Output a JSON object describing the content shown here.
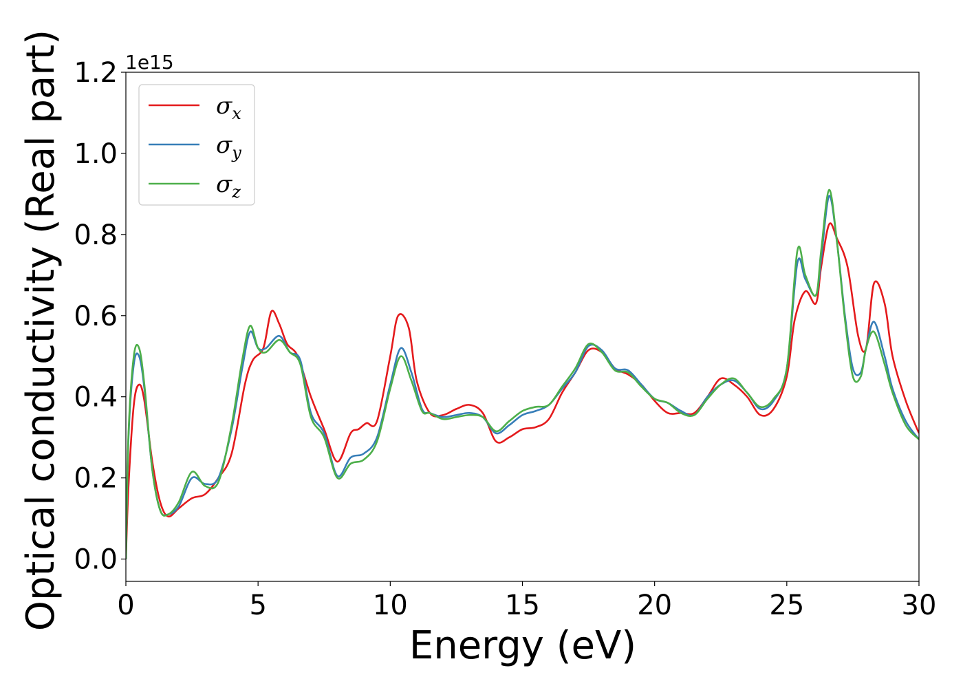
{
  "chart_data": {
    "type": "line",
    "xlabel": "Energy (eV)",
    "ylabel": "Optical conductivity (Real part)",
    "y_offset_label": "1e15",
    "xlim": [
      0,
      30
    ],
    "ylim": [
      -0.055,
      1.2
    ],
    "xticks": [
      0,
      5,
      10,
      15,
      20,
      25,
      30
    ],
    "xtick_labels": [
      "0",
      "5",
      "10",
      "15",
      "20",
      "25",
      "30"
    ],
    "yticks": [
      0.0,
      0.2,
      0.4,
      0.6,
      0.8,
      1.0,
      1.2
    ],
    "ytick_labels": [
      "0.0",
      "0.2",
      "0.4",
      "0.6",
      "0.8",
      "1.0",
      "1.2"
    ],
    "grid": false,
    "legend_position": "top-left",
    "series": [
      {
        "name": "σx",
        "symbol": "σ",
        "subscript": "x",
        "color": "#e41a1c",
        "x": [
          0,
          0.1,
          0.3,
          0.5,
          0.7,
          1.0,
          1.3,
          1.6,
          2.0,
          2.5,
          3.0,
          3.5,
          4.0,
          4.5,
          4.8,
          5.2,
          5.5,
          5.8,
          6.1,
          6.5,
          7.0,
          7.5,
          8.0,
          8.5,
          8.8,
          9.1,
          9.5,
          10.0,
          10.3,
          10.7,
          11.0,
          11.5,
          12.0,
          12.5,
          13.0,
          13.5,
          14.0,
          14.5,
          15.0,
          15.5,
          16.0,
          16.5,
          17.0,
          17.5,
          18.0,
          18.5,
          19.0,
          19.5,
          20.0,
          20.5,
          21.0,
          21.5,
          22.0,
          22.5,
          23.0,
          23.5,
          24.0,
          24.5,
          25.0,
          25.3,
          25.7,
          26.1,
          26.3,
          26.6,
          26.9,
          27.3,
          27.7,
          28.0,
          28.3,
          28.7,
          29.0,
          29.5,
          30.0
        ],
        "y": [
          0.0,
          0.18,
          0.38,
          0.43,
          0.39,
          0.24,
          0.14,
          0.105,
          0.125,
          0.15,
          0.16,
          0.2,
          0.26,
          0.43,
          0.49,
          0.52,
          0.61,
          0.58,
          0.53,
          0.5,
          0.4,
          0.32,
          0.24,
          0.31,
          0.32,
          0.335,
          0.34,
          0.5,
          0.6,
          0.57,
          0.44,
          0.36,
          0.355,
          0.37,
          0.38,
          0.36,
          0.29,
          0.3,
          0.32,
          0.325,
          0.345,
          0.41,
          0.46,
          0.515,
          0.51,
          0.47,
          0.455,
          0.43,
          0.39,
          0.36,
          0.36,
          0.36,
          0.4,
          0.445,
          0.43,
          0.4,
          0.355,
          0.37,
          0.45,
          0.59,
          0.66,
          0.63,
          0.72,
          0.825,
          0.79,
          0.72,
          0.55,
          0.52,
          0.68,
          0.63,
          0.5,
          0.39,
          0.31
        ]
      },
      {
        "name": "σy",
        "symbol": "σ",
        "subscript": "y",
        "color": "#377eb8",
        "x": [
          0,
          0.1,
          0.3,
          0.5,
          0.7,
          1.0,
          1.3,
          1.6,
          2.0,
          2.5,
          3.0,
          3.5,
          4.0,
          4.4,
          4.7,
          5.0,
          5.3,
          5.8,
          6.2,
          6.6,
          7.0,
          7.5,
          8.0,
          8.5,
          9.0,
          9.5,
          10.0,
          10.4,
          10.8,
          11.2,
          11.5,
          12.0,
          12.5,
          13.0,
          13.5,
          14.0,
          14.5,
          15.0,
          15.5,
          16.0,
          16.5,
          17.0,
          17.5,
          18.0,
          18.5,
          19.0,
          19.5,
          20.0,
          20.5,
          21.0,
          21.5,
          22.0,
          22.5,
          23.0,
          23.5,
          24.0,
          24.5,
          25.0,
          25.4,
          25.7,
          26.1,
          26.3,
          26.6,
          26.9,
          27.2,
          27.5,
          27.8,
          28.0,
          28.3,
          28.7,
          29.0,
          29.5,
          30.0
        ],
        "y": [
          0.0,
          0.3,
          0.48,
          0.5,
          0.42,
          0.22,
          0.12,
          0.11,
          0.13,
          0.2,
          0.185,
          0.2,
          0.32,
          0.47,
          0.56,
          0.52,
          0.52,
          0.55,
          0.51,
          0.49,
          0.36,
          0.31,
          0.205,
          0.25,
          0.26,
          0.3,
          0.43,
          0.52,
          0.46,
          0.37,
          0.36,
          0.35,
          0.355,
          0.36,
          0.35,
          0.31,
          0.33,
          0.355,
          0.365,
          0.38,
          0.42,
          0.46,
          0.525,
          0.515,
          0.47,
          0.465,
          0.43,
          0.395,
          0.385,
          0.365,
          0.355,
          0.4,
          0.43,
          0.44,
          0.41,
          0.37,
          0.39,
          0.47,
          0.73,
          0.69,
          0.65,
          0.74,
          0.895,
          0.78,
          0.6,
          0.47,
          0.46,
          0.52,
          0.585,
          0.5,
          0.42,
          0.34,
          0.295
        ]
      },
      {
        "name": "σz",
        "symbol": "σ",
        "subscript": "z",
        "color": "#4daf4a",
        "x": [
          0,
          0.1,
          0.3,
          0.5,
          0.7,
          1.0,
          1.3,
          1.6,
          2.0,
          2.5,
          3.0,
          3.5,
          4.0,
          4.4,
          4.7,
          5.0,
          5.3,
          5.8,
          6.2,
          6.6,
          7.0,
          7.5,
          8.0,
          8.5,
          9.0,
          9.5,
          10.0,
          10.4,
          10.8,
          11.2,
          11.5,
          12.0,
          12.5,
          13.0,
          13.5,
          14.0,
          14.5,
          15.0,
          15.5,
          16.0,
          16.5,
          17.0,
          17.5,
          18.0,
          18.5,
          19.0,
          19.5,
          20.0,
          20.5,
          21.0,
          21.5,
          22.0,
          22.5,
          23.0,
          23.5,
          24.0,
          24.5,
          25.0,
          25.4,
          25.7,
          26.1,
          26.3,
          26.6,
          26.9,
          27.2,
          27.5,
          27.8,
          28.0,
          28.3,
          28.7,
          29.0,
          29.5,
          30.0
        ],
        "y": [
          0.0,
          0.31,
          0.5,
          0.52,
          0.43,
          0.22,
          0.12,
          0.11,
          0.14,
          0.215,
          0.18,
          0.19,
          0.33,
          0.49,
          0.575,
          0.52,
          0.51,
          0.54,
          0.51,
          0.48,
          0.35,
          0.3,
          0.2,
          0.235,
          0.245,
          0.29,
          0.42,
          0.5,
          0.44,
          0.365,
          0.36,
          0.345,
          0.35,
          0.355,
          0.35,
          0.315,
          0.34,
          0.365,
          0.375,
          0.38,
          0.425,
          0.47,
          0.53,
          0.51,
          0.465,
          0.46,
          0.425,
          0.395,
          0.385,
          0.36,
          0.355,
          0.395,
          0.43,
          0.445,
          0.41,
          0.375,
          0.395,
          0.47,
          0.76,
          0.7,
          0.65,
          0.76,
          0.91,
          0.78,
          0.59,
          0.45,
          0.45,
          0.52,
          0.56,
          0.48,
          0.41,
          0.33,
          0.295
        ]
      }
    ]
  }
}
